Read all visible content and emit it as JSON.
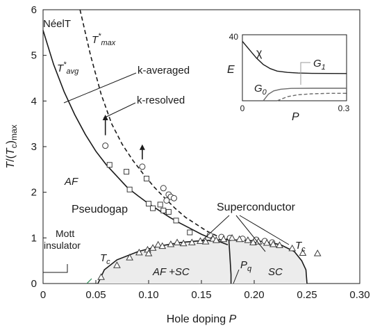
{
  "chart_data": {
    "type": "scatter",
    "xlabel": "Hole doping P",
    "ylabel": "T/(Tc)max",
    "xlim": [
      0,
      0.3
    ],
    "ylim": [
      0,
      6
    ],
    "xticks": [
      "0",
      "0.05",
      "0.10",
      "0.15",
      "0.20",
      "0.25",
      "0.30"
    ],
    "yticks": [
      "0",
      "1",
      "2",
      "3",
      "4",
      "5",
      "6"
    ],
    "series": [
      {
        "name": "squares",
        "marker": "square",
        "points": [
          [
            0.063,
            2.6
          ],
          [
            0.079,
            2.45
          ],
          [
            0.082,
            2.06
          ],
          [
            0.098,
            2.3
          ],
          [
            0.1,
            1.75
          ],
          [
            0.104,
            1.65
          ],
          [
            0.111,
            1.73
          ],
          [
            0.114,
            1.6
          ],
          [
            0.119,
            1.57
          ],
          [
            0.126,
            1.38
          ],
          [
            0.139,
            1.12
          ]
        ]
      },
      {
        "name": "circles",
        "marker": "circle",
        "points": [
          [
            0.059,
            3.02
          ],
          [
            0.094,
            2.56
          ],
          [
            0.114,
            2.09
          ],
          [
            0.119,
            1.95
          ],
          [
            0.121,
            1.9
          ],
          [
            0.124,
            1.87
          ],
          [
            0.117,
            1.82
          ],
          [
            0.158,
            1.06
          ],
          [
            0.169,
            1.02
          ],
          [
            0.177,
            1.0
          ],
          [
            0.189,
            0.98
          ],
          [
            0.202,
            0.96
          ],
          [
            0.21,
            0.93
          ],
          [
            0.217,
            0.9
          ]
        ]
      },
      {
        "name": "triangles",
        "marker": "triangle",
        "points": [
          [
            0.055,
            0.14
          ],
          [
            0.07,
            0.4
          ],
          [
            0.082,
            0.57
          ],
          [
            0.091,
            0.68
          ],
          [
            0.099,
            0.74
          ],
          [
            0.1,
            0.66
          ],
          [
            0.104,
            0.78
          ],
          [
            0.109,
            0.85
          ],
          [
            0.113,
            0.82
          ],
          [
            0.121,
            0.86
          ],
          [
            0.127,
            0.9
          ],
          [
            0.133,
            0.88
          ],
          [
            0.141,
            0.9
          ],
          [
            0.149,
            0.93
          ],
          [
            0.154,
            0.92
          ],
          [
            0.161,
            0.98
          ],
          [
            0.164,
            0.95
          ],
          [
            0.171,
            0.97
          ],
          [
            0.179,
            1.0
          ],
          [
            0.186,
            0.97
          ],
          [
            0.194,
            0.95
          ],
          [
            0.199,
            0.9
          ],
          [
            0.204,
            0.92
          ],
          [
            0.212,
            0.89
          ],
          [
            0.218,
            0.86
          ],
          [
            0.224,
            0.84
          ],
          [
            0.236,
            0.77
          ],
          [
            0.246,
            0.67
          ],
          [
            0.26,
            0.66
          ]
        ]
      }
    ],
    "curves": [
      {
        "name": "T*avg",
        "style": "solid",
        "points": [
          [
            0,
            5.55
          ],
          [
            0.01,
            4.8
          ],
          [
            0.02,
            4.2
          ],
          [
            0.03,
            3.7
          ],
          [
            0.04,
            3.27
          ],
          [
            0.05,
            2.9
          ],
          [
            0.06,
            2.6
          ],
          [
            0.07,
            2.35
          ],
          [
            0.08,
            2.1
          ],
          [
            0.09,
            1.92
          ],
          [
            0.1,
            1.75
          ],
          [
            0.11,
            1.6
          ],
          [
            0.12,
            1.45
          ],
          [
            0.13,
            1.32
          ],
          [
            0.14,
            1.2
          ],
          [
            0.15,
            1.08
          ],
          [
            0.16,
            0.98
          ],
          [
            0.175,
            0.85
          ]
        ]
      },
      {
        "name": "T*max",
        "style": "dashed",
        "points": [
          [
            0.035,
            6.0
          ],
          [
            0.045,
            5.0
          ],
          [
            0.055,
            4.15
          ],
          [
            0.065,
            3.5
          ],
          [
            0.075,
            3.05
          ],
          [
            0.085,
            2.7
          ],
          [
            0.095,
            2.4
          ],
          [
            0.105,
            2.12
          ],
          [
            0.115,
            1.88
          ],
          [
            0.125,
            1.65
          ],
          [
            0.135,
            1.45
          ],
          [
            0.145,
            1.3
          ],
          [
            0.155,
            1.15
          ],
          [
            0.165,
            1.04
          ],
          [
            0.175,
            0.97
          ]
        ]
      },
      {
        "name": "Tc",
        "style": "solid",
        "points": [
          [
            0.052,
            0.0
          ],
          [
            0.058,
            0.3
          ],
          [
            0.07,
            0.52
          ],
          [
            0.09,
            0.7
          ],
          [
            0.11,
            0.82
          ],
          [
            0.13,
            0.9
          ],
          [
            0.15,
            0.94
          ],
          [
            0.17,
            0.96
          ],
          [
            0.19,
            0.95
          ],
          [
            0.21,
            0.92
          ],
          [
            0.225,
            0.85
          ],
          [
            0.238,
            0.7
          ],
          [
            0.245,
            0.5
          ],
          [
            0.249,
            0.3
          ],
          [
            0.25,
            0.0
          ]
        ]
      },
      {
        "name": "Pq",
        "style": "solid",
        "points": [
          [
            0.176,
            0.96
          ],
          [
            0.177,
            0.6
          ],
          [
            0.178,
            0.2
          ],
          [
            0.178,
            0.0
          ]
        ]
      }
    ],
    "arrows": [
      {
        "x": 0.059,
        "from": 3.25,
        "to": 3.7
      },
      {
        "x": 0.094,
        "from": 2.72,
        "to": 3.05
      }
    ],
    "annotations": {
      "neel": "NéelT",
      "tmax": "T*max",
      "tavg": "T*avg",
      "k_averaged": "k-averaged",
      "k_resolved": "k-resolved",
      "af": "AF",
      "pseudogap": "Pseudogap",
      "superconductor": "Superconductor",
      "mott": "Mott",
      "insulator": "insulator",
      "tc_left": "Tc",
      "tc_right": "Tc",
      "af_sc": "AF +SC",
      "pq": "Pq",
      "sc": "SC"
    },
    "inset": {
      "xlabel": "P",
      "ylabel": "E",
      "xlim": [
        0,
        0.3
      ],
      "ylim": [
        0,
        40
      ],
      "xticks": [
        "0",
        "0.3"
      ],
      "yticks": [
        "40",
        "0"
      ],
      "curves": [
        {
          "name": "χ",
          "style": "solid",
          "points": [
            [
              0,
              36
            ],
            [
              0.02,
              31
            ],
            [
              0.04,
              26
            ],
            [
              0.06,
              22
            ],
            [
              0.08,
              19.5
            ],
            [
              0.1,
              18
            ],
            [
              0.13,
              17.2
            ],
            [
              0.16,
              16.8
            ],
            [
              0.2,
              16.6
            ],
            [
              0.3,
              16.5
            ]
          ]
        },
        {
          "name": "G1",
          "style": "solid",
          "points": [
            [
              0.06,
              0
            ],
            [
              0.075,
              4
            ],
            [
              0.09,
              6
            ],
            [
              0.11,
              7
            ],
            [
              0.14,
              7.5
            ],
            [
              0.2,
              7.6
            ],
            [
              0.3,
              7.6
            ]
          ]
        },
        {
          "name": "G0",
          "style": "dashed",
          "points": [
            [
              0.1,
              0
            ],
            [
              0.13,
              2.5
            ],
            [
              0.16,
              3.6
            ],
            [
              0.2,
              4.2
            ],
            [
              0.25,
              4.5
            ],
            [
              0.3,
              4.5
            ]
          ]
        }
      ],
      "labels": {
        "chi": "χ",
        "g1": "G1",
        "g0": "G0"
      }
    }
  }
}
